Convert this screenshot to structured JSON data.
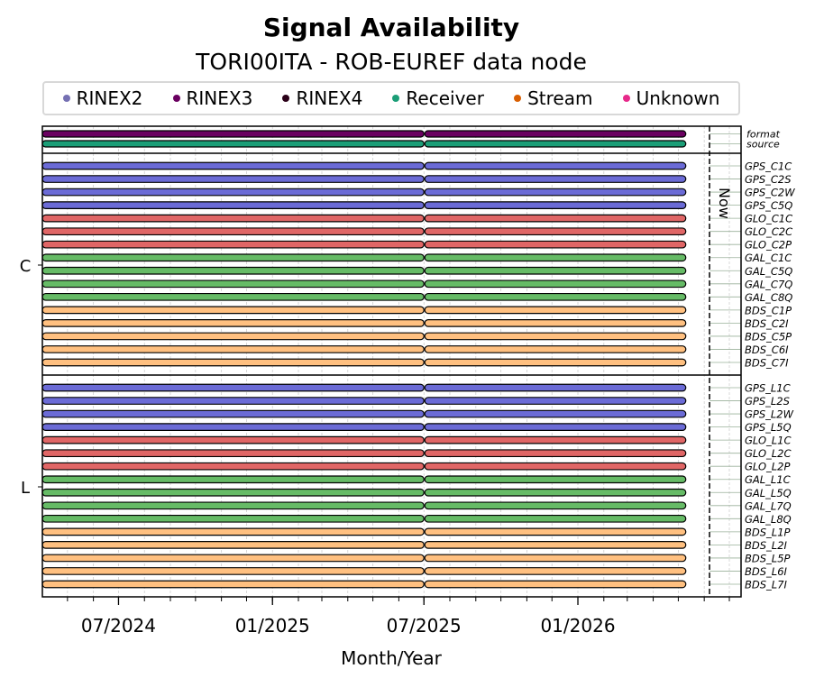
{
  "title": "Signal Availability",
  "subtitle": "TORI00ITA - ROB-EUREF data node",
  "legend": [
    {
      "label": "RINEX2",
      "color": "#7570b3"
    },
    {
      "label": "RINEX3",
      "color": "#6a0060"
    },
    {
      "label": "RINEX4",
      "color": "#2b0018"
    },
    {
      "label": "Receiver",
      "color": "#1b9e77"
    },
    {
      "label": "Stream",
      "color": "#d95f02"
    },
    {
      "label": "Unknown",
      "color": "#e7298a"
    }
  ],
  "chart_data": {
    "type": "timeline",
    "title": "Signal Availability",
    "subtitle": "TORI00ITA - ROB-EUREF data node",
    "xlabel": "Month/Year",
    "xlim": [
      "2024-04-01",
      "2026-07-15"
    ],
    "x_ticks": [
      {
        "date": "2024-07-01",
        "label": "07/2024"
      },
      {
        "date": "2025-01-01",
        "label": "01/2025"
      },
      {
        "date": "2025-07-01",
        "label": "07/2025"
      },
      {
        "date": "2026-01-01",
        "label": "01/2026"
      }
    ],
    "now_label": "Now",
    "now_date": "2026-05-10",
    "meta_rows": [
      {
        "label": "format",
        "color": "#6a0060",
        "segments": [
          [
            "2024-04-01",
            "2025-07-01"
          ],
          [
            "2025-07-02",
            "2026-05-10"
          ]
        ]
      },
      {
        "label": "source",
        "color": "#1b9e77",
        "segments": [
          [
            "2024-04-01",
            "2025-07-01"
          ],
          [
            "2025-07-02",
            "2026-05-10"
          ]
        ]
      }
    ],
    "groups": [
      {
        "label": "C",
        "signals": [
          {
            "label": "GPS_C1C",
            "color": "#6b6bd6"
          },
          {
            "label": "GPS_C2S",
            "color": "#6b6bd6"
          },
          {
            "label": "GPS_C2W",
            "color": "#6b6bd6"
          },
          {
            "label": "GPS_C5Q",
            "color": "#6b6bd6"
          },
          {
            "label": "GLO_C1C",
            "color": "#e06666"
          },
          {
            "label": "GLO_C2C",
            "color": "#e06666"
          },
          {
            "label": "GLO_C2P",
            "color": "#e06666"
          },
          {
            "label": "GAL_C1C",
            "color": "#66bb66"
          },
          {
            "label": "GAL_C5Q",
            "color": "#66bb66"
          },
          {
            "label": "GAL_C7Q",
            "color": "#66bb66"
          },
          {
            "label": "GAL_C8Q",
            "color": "#66bb66"
          },
          {
            "label": "BDS_C1P",
            "color": "#ffc080"
          },
          {
            "label": "BDS_C2I",
            "color": "#ffc080"
          },
          {
            "label": "BDS_C5P",
            "color": "#ffc080"
          },
          {
            "label": "BDS_C6I",
            "color": "#ffc080"
          },
          {
            "label": "BDS_C7I",
            "color": "#ffc080"
          }
        ]
      },
      {
        "label": "L",
        "signals": [
          {
            "label": "GPS_L1C",
            "color": "#6b6bd6"
          },
          {
            "label": "GPS_L2S",
            "color": "#6b6bd6"
          },
          {
            "label": "GPS_L2W",
            "color": "#6b6bd6"
          },
          {
            "label": "GPS_L5Q",
            "color": "#6b6bd6"
          },
          {
            "label": "GLO_L1C",
            "color": "#e06666"
          },
          {
            "label": "GLO_L2C",
            "color": "#e06666"
          },
          {
            "label": "GLO_L2P",
            "color": "#e06666"
          },
          {
            "label": "GAL_L1C",
            "color": "#66bb66"
          },
          {
            "label": "GAL_L5Q",
            "color": "#66bb66"
          },
          {
            "label": "GAL_L7Q",
            "color": "#66bb66"
          },
          {
            "label": "GAL_L8Q",
            "color": "#66bb66"
          },
          {
            "label": "BDS_L1P",
            "color": "#ffc080"
          },
          {
            "label": "BDS_L2I",
            "color": "#ffc080"
          },
          {
            "label": "BDS_L5P",
            "color": "#ffc080"
          },
          {
            "label": "BDS_L6I",
            "color": "#ffc080"
          },
          {
            "label": "BDS_L7I",
            "color": "#ffc080"
          }
        ]
      }
    ],
    "signal_segments": [
      [
        "2024-04-01",
        "2025-07-01"
      ],
      [
        "2025-07-02",
        "2026-05-10"
      ]
    ],
    "grid": true
  }
}
